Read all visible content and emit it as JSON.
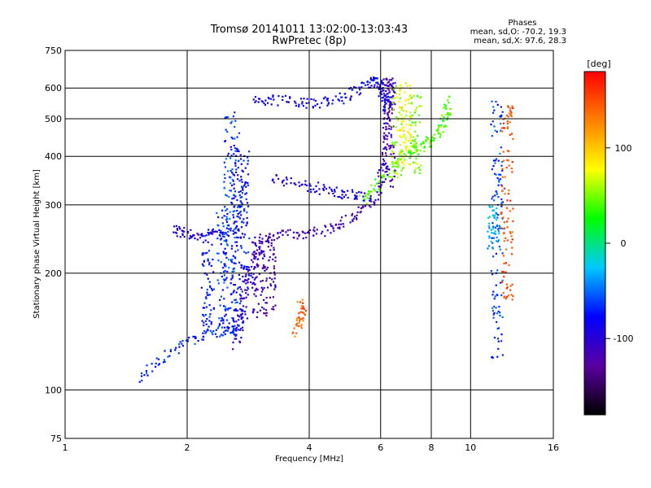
{
  "chart_data": {
    "type": "scatter",
    "title": "Tromsø 20141011 13:02:00-13:03:43",
    "subtitle": "RwPretec (8p)",
    "xlabel": "Frequency [MHz]",
    "ylabel": "Stationary phase Virtual Height [km]",
    "xscale": "log",
    "yscale": "log",
    "xlim": [
      1,
      16
    ],
    "ylim": [
      75,
      750
    ],
    "x_ticks": [
      1,
      2,
      4,
      6,
      8,
      10,
      16
    ],
    "y_ticks": [
      75,
      100,
      200,
      300,
      400,
      500,
      600,
      750
    ],
    "grid": true,
    "stats": {
      "heading": "Phases",
      "line_o": "mean, sd,O: -70.2, 19.3",
      "line_x": "mean, sd,X:  97.6, 28.3"
    },
    "colorbar": {
      "label": "[deg]",
      "range": [
        -180,
        180
      ],
      "ticks": [
        100,
        0,
        -100
      ],
      "colormap": "rainbow",
      "colors": [
        "#000000",
        "#5a00a0",
        "#0000ff",
        "#00c8ff",
        "#00ff00",
        "#ffff00",
        "#ff8000",
        "#ff0000"
      ]
    },
    "traces": [
      {
        "name": "",
        "phase": -115,
        "points": [
          [
            2.65,
            130
          ],
          [
            2.7,
            150
          ],
          [
            2.75,
            170
          ],
          [
            2.8,
            190
          ],
          [
            2.9,
            210
          ],
          [
            3.0,
            230
          ],
          [
            3.1,
            245
          ],
          [
            3.3,
            250
          ],
          [
            3.6,
            252
          ],
          [
            4.0,
            253
          ],
          [
            4.4,
            258
          ],
          [
            4.8,
            268
          ],
          [
            5.2,
            282
          ],
          [
            5.6,
            300
          ],
          [
            5.9,
            330
          ],
          [
            6.1,
            370
          ],
          [
            6.2,
            420
          ],
          [
            6.25,
            480
          ],
          [
            6.3,
            540
          ],
          [
            6.3,
            600
          ],
          [
            6.35,
            640
          ]
        ]
      },
      {
        "name": "",
        "phase": -85,
        "points": [
          [
            2.9,
            560
          ],
          [
            3.2,
            560
          ],
          [
            3.6,
            555
          ],
          [
            4.0,
            548
          ],
          [
            4.4,
            550
          ],
          [
            4.8,
            565
          ],
          [
            5.2,
            590
          ],
          [
            5.6,
            615
          ],
          [
            5.8,
            625
          ],
          [
            6.0,
            605
          ],
          [
            6.1,
            580
          ],
          [
            6.2,
            560
          ],
          [
            6.3,
            520
          ]
        ]
      },
      {
        "name": "",
        "phase": -70,
        "points": [
          [
            1.5,
            108
          ],
          [
            1.7,
            118
          ],
          [
            1.9,
            128
          ],
          [
            2.1,
            136
          ],
          [
            2.3,
            140
          ],
          [
            2.5,
            142
          ],
          [
            2.7,
            145
          ]
        ]
      },
      {
        "name": "",
        "phase": -95,
        "points": [
          [
            1.85,
            260
          ],
          [
            1.95,
            255
          ],
          [
            2.1,
            250
          ],
          [
            2.3,
            250
          ],
          [
            2.5,
            252
          ],
          [
            2.7,
            256
          ]
        ]
      },
      {
        "name": "",
        "phase": -90,
        "points": [
          [
            3.2,
            350
          ],
          [
            3.6,
            345
          ],
          [
            4.0,
            335
          ],
          [
            4.4,
            328
          ],
          [
            4.8,
            322
          ],
          [
            5.2,
            318
          ],
          [
            5.6,
            315
          ]
        ]
      },
      {
        "name": "",
        "phase": 40,
        "points": [
          [
            5.4,
            310
          ],
          [
            5.8,
            330
          ],
          [
            6.2,
            360
          ],
          [
            6.6,
            390
          ],
          [
            7.0,
            410
          ],
          [
            7.4,
            420
          ],
          [
            7.8,
            430
          ],
          [
            8.2,
            450
          ],
          [
            8.5,
            480
          ],
          [
            8.7,
            520
          ],
          [
            8.8,
            560
          ]
        ]
      },
      {
        "name": "",
        "phase": 140,
        "points": [
          [
            3.7,
            140
          ],
          [
            3.8,
            150
          ],
          [
            3.85,
            160
          ],
          [
            3.8,
            170
          ]
        ]
      }
    ],
    "columns": [
      {
        "x": 2.45,
        "ylim": [
          140,
          300
        ],
        "phase": -70
      },
      {
        "x": 2.55,
        "ylim": [
          140,
          520
        ],
        "phase": -60
      },
      {
        "x": 2.65,
        "ylim": [
          135,
          460
        ],
        "phase": -80
      },
      {
        "x": 2.75,
        "ylim": [
          150,
          420
        ],
        "phase": -75
      },
      {
        "x": 2.25,
        "ylim": [
          140,
          260
        ],
        "phase": -75
      },
      {
        "x": 3.0,
        "ylim": [
          150,
          250
        ],
        "phase": -110
      },
      {
        "x": 3.2,
        "ylim": [
          155,
          240
        ],
        "phase": -115
      },
      {
        "x": 6.3,
        "ylim": [
          330,
          640
        ],
        "phase": -110
      },
      {
        "x": 6.6,
        "ylim": [
          350,
          620
        ],
        "phase": 60
      },
      {
        "x": 6.9,
        "ylim": [
          380,
          620
        ],
        "phase": 80
      },
      {
        "x": 7.3,
        "ylim": [
          360,
          580
        ],
        "phase": 50
      },
      {
        "x": 11.4,
        "ylim": [
          230,
          300
        ],
        "phase": -30
      },
      {
        "x": 11.6,
        "ylim": [
          120,
          560
        ],
        "phase": -60
      },
      {
        "x": 12.3,
        "ylim": [
          170,
          560
        ],
        "phase": 150
      }
    ]
  }
}
